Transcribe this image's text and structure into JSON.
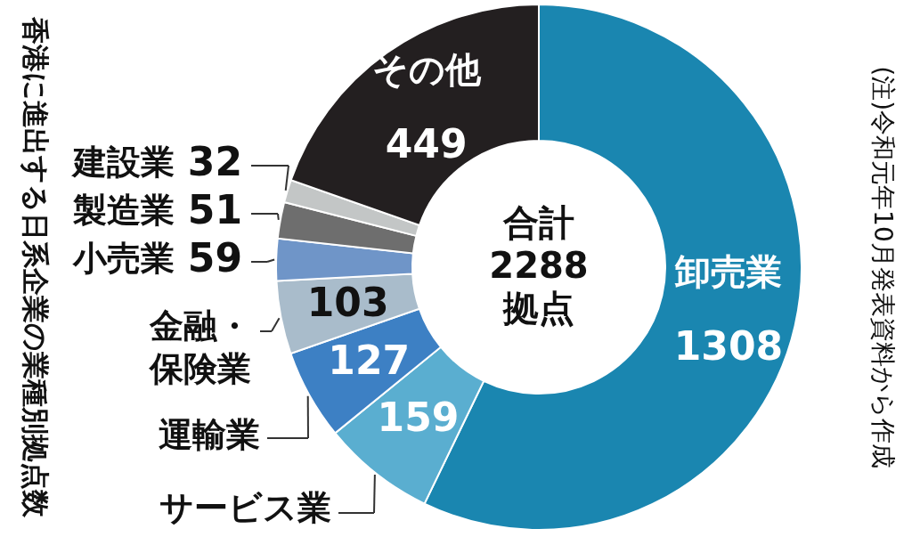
{
  "chart_data": {
    "type": "donut",
    "title": "香港に進出する日系企業の業種別拠点数",
    "categories": [
      "卸売業",
      "サービス業",
      "運輸業",
      "金融・保険業",
      "小売業",
      "製造業",
      "建設業",
      "その他"
    ],
    "values": [
      1308,
      159,
      127,
      103,
      59,
      51,
      32,
      449
    ],
    "colors": [
      "#1a86b0",
      "#5aaed0",
      "#3d80c4",
      "#a9bccb",
      "#6f95c8",
      "#6e6e6e",
      "#c3c6c6",
      "#231f20"
    ],
    "annotations": [
      "合計\n2288\n拠点",
      "(注)令和元年10月発表資料から作成"
    ],
    "data_labels": true
  }
}
